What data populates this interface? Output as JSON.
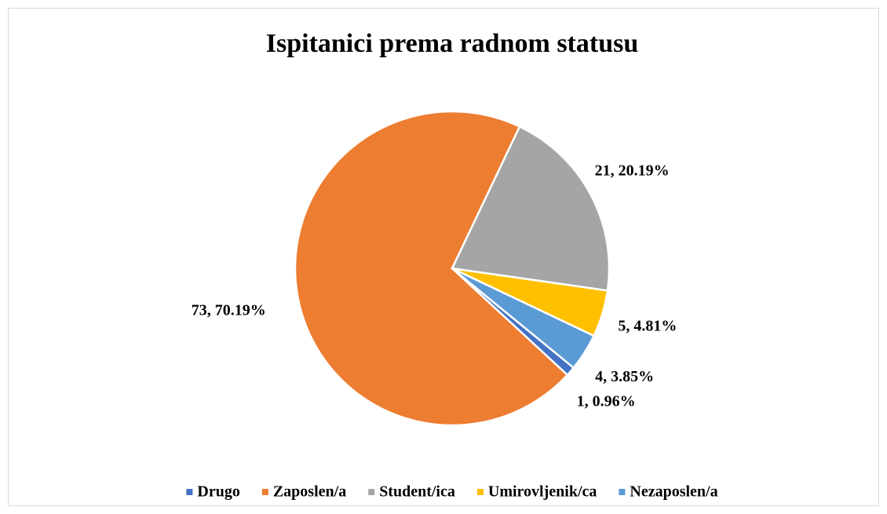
{
  "chart_data": {
    "type": "pie",
    "title": "Ispitanici prema radnom statusu",
    "categories": [
      "Drugo",
      "Zaposlen/a",
      "Student/ica",
      "Umirovljenik/ca",
      "Nezaposlen/a"
    ],
    "values": [
      1,
      73,
      21,
      5,
      4
    ],
    "value_labels": [
      "1, 0.96%",
      "73, 70.19%",
      "21, 20.19%",
      "5, 4.81%",
      "4, 3.85%"
    ],
    "colors": [
      "#4472c4",
      "#ed7d31",
      "#a5a5a5",
      "#ffc000",
      "#5b9bd5"
    ],
    "legend": "bottom"
  }
}
